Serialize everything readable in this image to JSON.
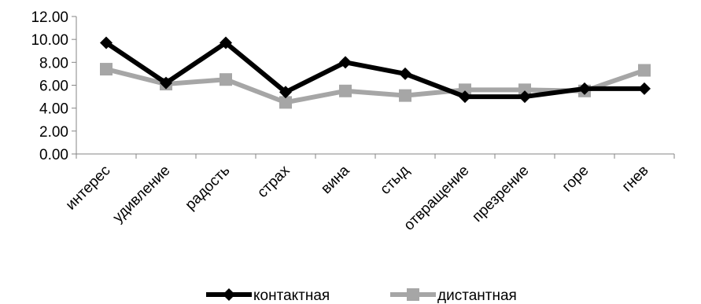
{
  "chart_data": {
    "type": "line",
    "categories": [
      "интерес",
      "удивление",
      "радость",
      "страх",
      "вина",
      "стыд",
      "отвращение",
      "презрение",
      "горе",
      "гнев"
    ],
    "series": [
      {
        "name": "контактная",
        "color": "#000000",
        "marker": "diamond",
        "values": [
          9.7,
          6.2,
          9.7,
          5.4,
          8.0,
          7.0,
          5.0,
          5.0,
          5.7,
          5.7
        ]
      },
      {
        "name": "дистантная",
        "color": "#a6a6a6",
        "marker": "square",
        "values": [
          7.4,
          6.1,
          6.5,
          4.5,
          5.5,
          5.1,
          5.6,
          5.6,
          5.5,
          7.3
        ]
      }
    ],
    "ylim": [
      0,
      12
    ],
    "yticks": [
      "0.00",
      "2.00",
      "4.00",
      "6.00",
      "8.00",
      "10.00",
      "12.00"
    ],
    "title": "",
    "xlabel": "",
    "ylabel": "",
    "grid": false,
    "legend_position": "bottom"
  }
}
